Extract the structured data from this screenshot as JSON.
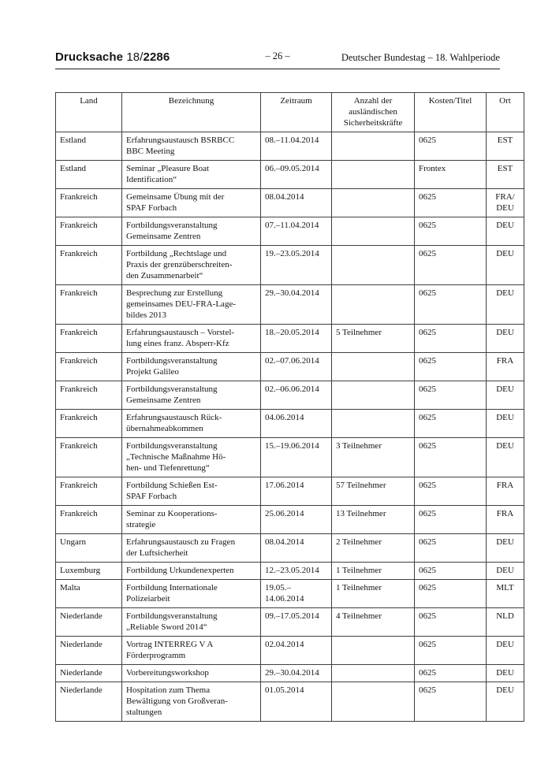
{
  "header": {
    "doc_label": "Drucksache",
    "doc_number_prefix": "18/",
    "doc_number_bold": "2286",
    "page_number": "– 26 –",
    "right_text": "Deutscher Bundestag – 18. Wahlperiode"
  },
  "table": {
    "column_headers": [
      "Land",
      "Bezeichnung",
      "Zeitraum",
      "Anzahl der\nausländischen\nSicherheitskräfte",
      "Kosten/Titel",
      "Ort"
    ],
    "rows": [
      [
        "Estland",
        "Erfahrungsaustausch BSRBCC\nBBC Meeting",
        "08.–11.04.2014",
        "",
        "0625",
        "EST"
      ],
      [
        "Estland",
        "Seminar „Pleasure Boat\nIdentification“",
        "06.–09.05.2014",
        "",
        "Frontex",
        "EST"
      ],
      [
        "Frankreich",
        "Gemeinsame Übung mit der\nSPAF Forbach",
        "08.04.2014",
        "",
        "0625",
        "FRA/\nDEU"
      ],
      [
        "Frankreich",
        "Fortbildungsveranstaltung\nGemeinsame Zentren",
        "07.–11.04.2014",
        "",
        "0625",
        "DEU"
      ],
      [
        "Frankreich",
        "Fortbildung „Rechtslage und\nPraxis der grenzüberschreiten-\nden Zusammenarbeit“",
        "19.–23.05.2014",
        "",
        "0625",
        "DEU"
      ],
      [
        "Frankreich",
        "Besprechung zur Erstellung\ngemeinsames DEU-FRA-Lage-\nbildes 2013",
        "29.–30.04.2014",
        "",
        "0625",
        "DEU"
      ],
      [
        "Frankreich",
        "Erfahrungsaustausch – Vorstel-\nlung eines franz. Absperr-Kfz",
        "18.–20.05.2014",
        "5 Teilnehmer",
        "0625",
        "DEU"
      ],
      [
        "Frankreich",
        "Fortbildungsveranstaltung\nProjekt Galileo",
        "02.–07.06.2014",
        "",
        "0625",
        "FRA"
      ],
      [
        "Frankreich",
        "Fortbildungsveranstaltung\nGemeinsame Zentren",
        "02.–06.06.2014",
        "",
        "0625",
        "DEU"
      ],
      [
        "Frankreich",
        "Erfahrungsaustausch Rück-\nübernahmeabkommen",
        "04.06.2014",
        "",
        "0625",
        "DEU"
      ],
      [
        "Frankreich",
        "Fortbildungsveranstaltung\n„Technische Maßnahme Hö-\nhen- und Tiefenrettung“",
        "15.–19.06.2014",
        "3 Teilnehmer",
        "0625",
        "DEU"
      ],
      [
        "Frankreich",
        "Fortbildung Schießen Est-\nSPAF Forbach",
        "17.06.2014",
        "57 Teilnehmer",
        "0625",
        "FRA"
      ],
      [
        "Frankreich",
        "Seminar zu Kooperations-\nstrategie",
        "25.06.2014",
        "13 Teilnehmer",
        "0625",
        "FRA"
      ],
      [
        "Ungarn",
        "Erfahrungsaustausch zu Fragen\nder Luftsicherheit",
        "08.04.2014",
        "2 Teilnehmer",
        "0625",
        "DEU"
      ],
      [
        "Luxemburg",
        "Fortbildung Urkundenexperten",
        "12.–23.05.2014",
        "1 Teilnehmer",
        "0625",
        "DEU"
      ],
      [
        "Malta",
        "Fortbildung Internationale\nPolizeiarbeit",
        "19.05.–\n14.06.2014",
        "1 Teilnehmer",
        "0625",
        "MLT"
      ],
      [
        "Niederlande",
        "Fortbildungsveranstaltung\n„Reliable Sword 2014“",
        "09.–17.05.2014",
        "4 Teilnehmer",
        "0625",
        "NLD"
      ],
      [
        "Niederlande",
        "Vortrag INTERREG V A\nFörderprogramm",
        "02.04.2014",
        "",
        "0625",
        "DEU"
      ],
      [
        "Niederlande",
        "Vorbereitungsworkshop",
        "29.–30.04.2014",
        "",
        "0625",
        "DEU"
      ],
      [
        "Niederlande",
        "Hospitation zum Thema\nBewältigung von Großveran-\nstaltungen",
        "01.05.2014",
        "",
        "0625",
        "DEU"
      ]
    ]
  }
}
